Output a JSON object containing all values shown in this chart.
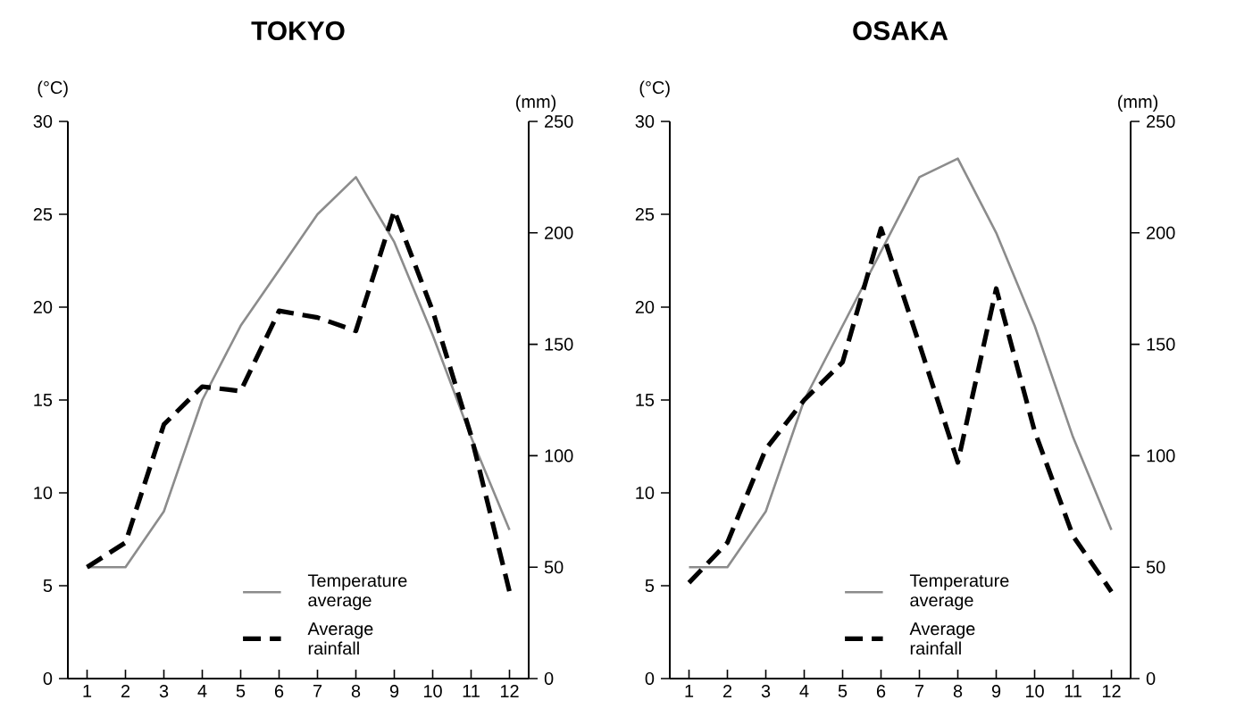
{
  "chart_data": [
    {
      "type": "line",
      "title": "TOKYO",
      "ylabel": "(°C)",
      "y2label": "(mm)",
      "x": [
        1,
        2,
        3,
        4,
        5,
        6,
        7,
        8,
        9,
        10,
        11,
        12
      ],
      "xlim": [
        0.5,
        12.5
      ],
      "xticks": [
        1,
        2,
        3,
        4,
        5,
        6,
        7,
        8,
        9,
        10,
        11,
        12
      ],
      "ylim": [
        0,
        30
      ],
      "yticks": [
        0,
        5,
        10,
        15,
        20,
        25,
        30
      ],
      "y2lim": [
        0,
        250
      ],
      "y2ticks": [
        0,
        50,
        100,
        150,
        200,
        250
      ],
      "legend": "bottom",
      "series": [
        {
          "name": "Temperature average",
          "color": "#8c8c8c",
          "line_style": "solid",
          "values": [
            6,
            6,
            9,
            15,
            19,
            22,
            25,
            27,
            23.5,
            18.5,
            13,
            8
          ]
        },
        {
          "name": "Average rainfall",
          "color": "#000000",
          "line_style": "dashed",
          "axis": "y2",
          "values": [
            50,
            61,
            114,
            131,
            129,
            165,
            162,
            156,
            210,
            165,
            109,
            39
          ]
        }
      ]
    },
    {
      "type": "line",
      "title": "OSAKA",
      "ylabel": "(°C)",
      "y2label": "(mm)",
      "x": [
        1,
        2,
        3,
        4,
        5,
        6,
        7,
        8,
        9,
        10,
        11,
        12
      ],
      "xlim": [
        0.5,
        12.5
      ],
      "xticks": [
        1,
        2,
        3,
        4,
        5,
        6,
        7,
        8,
        9,
        10,
        11,
        12
      ],
      "ylim": [
        0,
        30
      ],
      "yticks": [
        0,
        5,
        10,
        15,
        20,
        25,
        30
      ],
      "y2lim": [
        0,
        250
      ],
      "y2ticks": [
        0,
        50,
        100,
        150,
        200,
        250
      ],
      "legend": "bottom",
      "series": [
        {
          "name": "Temperature average",
          "color": "#8c8c8c",
          "line_style": "solid",
          "values": [
            6,
            6,
            9,
            15,
            19,
            23,
            27,
            28,
            24,
            19,
            13,
            8
          ]
        },
        {
          "name": "Average rainfall",
          "color": "#000000",
          "line_style": "dashed",
          "axis": "y2",
          "values": [
            43,
            61,
            103,
            125,
            142,
            202,
            150,
            97,
            175,
            111,
            64,
            39
          ]
        }
      ]
    }
  ]
}
